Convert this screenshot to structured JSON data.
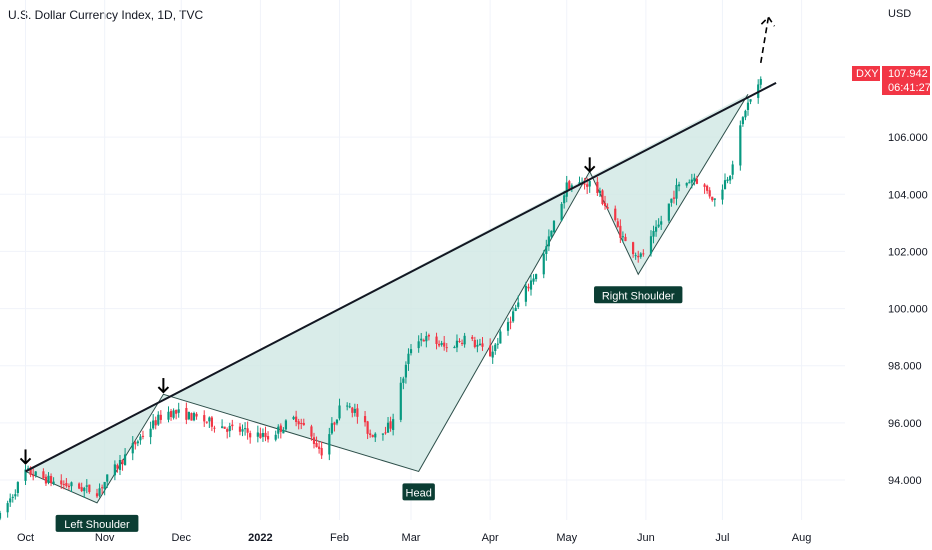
{
  "header": {
    "title": "U.S. Dollar Currency Index, 1D, TVC"
  },
  "price_axis": {
    "currency": "USD"
  },
  "price_badge": {
    "symbol": "DXY",
    "price": "107.942",
    "countdown": "06:41:27",
    "color": "#f23645"
  },
  "colors": {
    "up": "#089981",
    "down": "#f23645",
    "fill": "#cfe7e3",
    "line": "#131722",
    "label_bg": "#0b3d33"
  },
  "chart_data": {
    "type": "candlestick",
    "title": "U.S. Dollar Currency Index, 1D, TVC",
    "ylim": [
      92.6,
      110.8
    ],
    "y_ticks": [
      "94.000",
      "96.000",
      "98.000",
      "100.000",
      "102.000",
      "104.000",
      "106.000"
    ],
    "y_tick_values": [
      94,
      96,
      98,
      100,
      102,
      104,
      106
    ],
    "x_ticks": [
      "Oct",
      "Nov",
      "Dec",
      "2022",
      "Feb",
      "Mar",
      "Apr",
      "May",
      "Jun",
      "Jul",
      "Aug"
    ],
    "x_tick_days": [
      0,
      31,
      61,
      92,
      123,
      151,
      182,
      212,
      243,
      273,
      304
    ],
    "x_range_days": [
      -10,
      321
    ],
    "price_path_days": [
      -10,
      0,
      12,
      28,
      45,
      55,
      62,
      80,
      95,
      106,
      116,
      125,
      135,
      143,
      152,
      159,
      165,
      172,
      182,
      192,
      202,
      212,
      222,
      228,
      235,
      241,
      247,
      255,
      262,
      270,
      276,
      282,
      288
    ],
    "price_path_values": [
      92.7,
      94.3,
      93.9,
      93.6,
      95.5,
      96.4,
      96.3,
      95.8,
      95.5,
      96.2,
      95.0,
      96.9,
      95.6,
      95.9,
      99.0,
      98.9,
      98.6,
      99.0,
      98.4,
      100.0,
      101.6,
      104.3,
      104.4,
      103.5,
      102.3,
      101.8,
      102.7,
      104.2,
      104.6,
      103.8,
      104.8,
      107.0,
      107.942
    ],
    "head_and_shoulders": {
      "neckline": [
        {
          "day": 0,
          "value": 94.3
        },
        {
          "day": 294,
          "value": 107.9
        }
      ],
      "points": [
        {
          "day": 0,
          "value": 94.3
        },
        {
          "day": 28,
          "value": 93.2
        },
        {
          "day": 54,
          "value": 97.0
        },
        {
          "day": 154,
          "value": 94.3
        },
        {
          "day": 221,
          "value": 104.8
        },
        {
          "day": 240,
          "value": 101.2
        },
        {
          "day": 283,
          "value": 107.5
        }
      ],
      "labels": [
        {
          "text": "Left Shoulder",
          "day": 28,
          "value": 93.2
        },
        {
          "text": "Head",
          "day": 154,
          "value": 94.3
        },
        {
          "text": "Right Shoulder",
          "day": 240,
          "value": 101.2
        }
      ],
      "arrows_days": [
        0,
        54,
        221
      ],
      "projection": [
        {
          "day": 288,
          "value": 108.6
        },
        {
          "day": 291,
          "value": 110.2
        }
      ]
    }
  }
}
